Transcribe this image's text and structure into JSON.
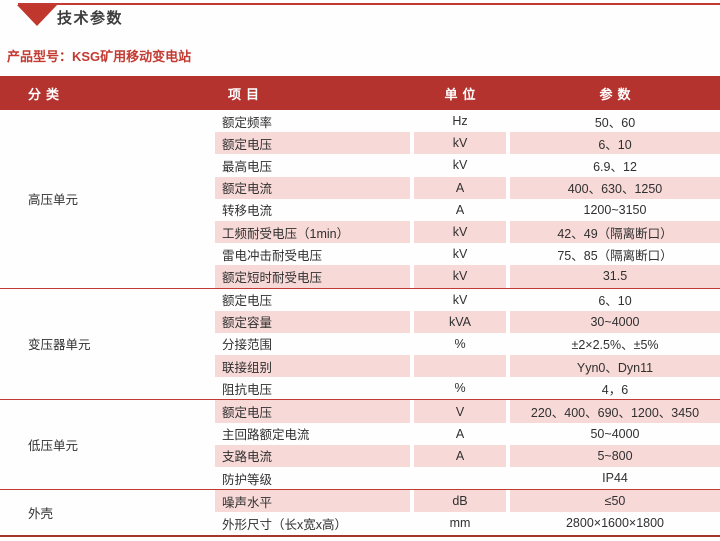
{
  "page": {
    "title": "技术参数",
    "product_label": "产品型号：KSG矿用移动变电站"
  },
  "colors": {
    "header_bg": "#b4332e",
    "row_pink": "#f7d9d7",
    "separator_red": "#c23a31",
    "accent_red": "#bf372d"
  },
  "table": {
    "headers": [
      "分类",
      "项目",
      "单位",
      "参数"
    ],
    "sections": [
      {
        "category": "高压单元",
        "rows": [
          {
            "item": "额定频率",
            "unit": "Hz",
            "value": "50、60"
          },
          {
            "item": "额定电压",
            "unit": "kV",
            "value": "6、10"
          },
          {
            "item": "最高电压",
            "unit": "kV",
            "value": "6.9、12"
          },
          {
            "item": "额定电流",
            "unit": "A",
            "value": "400、630、1250"
          },
          {
            "item": "转移电流",
            "unit": "A",
            "value": "1200~3150"
          },
          {
            "item": "工频耐受电压（1min）",
            "unit": "kV",
            "value": "42、49（隔离断口）"
          },
          {
            "item": "雷电冲击耐受电压",
            "unit": "kV",
            "value": "75、85（隔离断口）"
          },
          {
            "item": "额定短时耐受电压",
            "unit": "kV",
            "value": "31.5"
          }
        ]
      },
      {
        "category": "变压器单元",
        "rows": [
          {
            "item": "额定电压",
            "unit": "kV",
            "value": "6、10"
          },
          {
            "item": "额定容量",
            "unit": "kVA",
            "value": "30~4000"
          },
          {
            "item": "分接范围",
            "unit": "%",
            "value": "±2×2.5%、±5%"
          },
          {
            "item": "联接组别",
            "unit": "",
            "value": "Yyn0、Dyn11"
          },
          {
            "item": "阻抗电压",
            "unit": "%",
            "value": "4，6"
          }
        ]
      },
      {
        "category": "低压单元",
        "rows": [
          {
            "item": "额定电压",
            "unit": "V",
            "value": "220、400、690、1200、3450"
          },
          {
            "item": "主回路额定电流",
            "unit": "A",
            "value": "50~4000"
          },
          {
            "item": "支路电流",
            "unit": "A",
            "value": "5~800"
          },
          {
            "item": "防护等级",
            "unit": "",
            "value": "IP44"
          }
        ]
      },
      {
        "category": "外壳",
        "rows": [
          {
            "item": "噪声水平",
            "unit": "dB",
            "value": "≤50"
          },
          {
            "item": "外形尺寸（长x宽x高）",
            "unit": "mm",
            "value": "2800×1600×1800"
          }
        ]
      }
    ]
  }
}
